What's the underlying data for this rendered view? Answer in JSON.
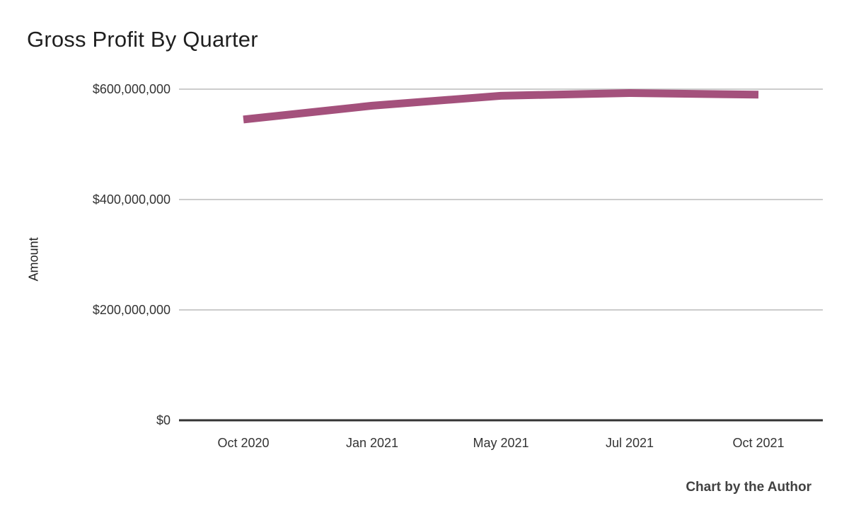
{
  "header": {
    "title": "Gross Profit By Quarter"
  },
  "footer": {
    "credit": "Chart by the Author"
  },
  "chart_data": {
    "type": "line",
    "title": "Gross Profit By Quarter",
    "xlabel": "",
    "ylabel": "Amount",
    "categories": [
      "Oct 2020",
      "Jan 2021",
      "May 2021",
      "Jul 2021",
      "Oct 2021"
    ],
    "values": [
      545000000,
      570000000,
      588000000,
      593000000,
      590000000
    ],
    "ylim": [
      0,
      600000000
    ],
    "yticks": [
      {
        "value": 0,
        "label": "$0"
      },
      {
        "value": 200000000,
        "label": "$200,000,000"
      },
      {
        "value": 400000000,
        "label": "$400,000,000"
      },
      {
        "value": 600000000,
        "label": "$600,000,000"
      }
    ],
    "grid": true,
    "legend": "none",
    "line_color": "#a4517c",
    "line_width": 11,
    "axis_color": "#333333",
    "grid_color": "#cccccc"
  }
}
